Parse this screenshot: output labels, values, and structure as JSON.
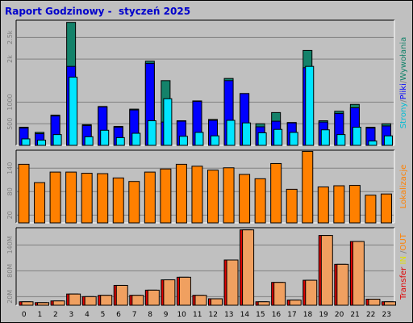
{
  "title": "Raport Godzinowy -  styczeń 2025",
  "colors": {
    "background": "#c0c0c0",
    "hits": "#14826a",
    "files": "#0000ff",
    "pages": "#00e5ff",
    "visits": "#ff8000",
    "sites": "#ffb000",
    "kbytes": "#e00000",
    "kbytes_fill": "#f0a060",
    "title": "#0000cc"
  },
  "right_labels": {
    "panel1": [
      {
        "text": "Strony",
        "color": "#00bcd4"
      },
      {
        "text": "/",
        "color": "#808080"
      },
      {
        "text": "Pliki",
        "color": "#0000ff"
      },
      {
        "text": "/",
        "color": "#808080"
      },
      {
        "text": "Wywołania",
        "color": "#14826a"
      }
    ],
    "panel2": [
      {
        "text": "Lokalizacje",
        "color": "#ff8000"
      }
    ],
    "panel3": [
      {
        "text": "Transfer",
        "color": "#e00000"
      },
      {
        "text": " IN ",
        "color": "#e0e000"
      },
      {
        "text": "/",
        "color": "#808080"
      },
      {
        "text": "OUT",
        "color": "#ff8000"
      }
    ]
  },
  "chart_data": [
    {
      "type": "bar",
      "name": "Strony/Pliki/Wywołania",
      "categories": [
        "0",
        "1",
        "2",
        "3",
        "4",
        "5",
        "6",
        "7",
        "8",
        "9",
        "10",
        "11",
        "12",
        "13",
        "14",
        "15",
        "16",
        "17",
        "18",
        "19",
        "20",
        "21",
        "22",
        "23"
      ],
      "ylim": [
        0,
        2900
      ],
      "yticks": [
        500,
        1000,
        2000,
        2500
      ],
      "ytick_labels": [
        "500",
        "1000",
        "2k",
        "2.5k"
      ],
      "series": [
        {
          "name": "Wywołania",
          "values": [
            420,
            300,
            700,
            2850,
            480,
            900,
            440,
            840,
            1950,
            1500,
            570,
            1030,
            600,
            1550,
            1200,
            500,
            760,
            530,
            2200,
            570,
            790,
            950,
            420,
            500
          ]
        },
        {
          "name": "Pliki",
          "values": [
            400,
            270,
            680,
            1830,
            460,
            890,
            420,
            820,
            1900,
            540,
            560,
            1020,
            580,
            1500,
            1200,
            430,
            560,
            520,
            1800,
            540,
            740,
            870,
            400,
            450
          ]
        },
        {
          "name": "Strony",
          "values": [
            150,
            120,
            250,
            1580,
            200,
            350,
            180,
            280,
            570,
            1080,
            210,
            300,
            220,
            580,
            520,
            290,
            370,
            300,
            1830,
            360,
            250,
            420,
            100,
            220
          ]
        }
      ]
    },
    {
      "type": "bar",
      "name": "Lokalizacje",
      "categories": [
        "0",
        "1",
        "2",
        "3",
        "4",
        "5",
        "6",
        "7",
        "8",
        "9",
        "10",
        "11",
        "12",
        "13",
        "14",
        "15",
        "16",
        "17",
        "18",
        "19",
        "20",
        "21",
        "22",
        "23"
      ],
      "ylim": [
        0,
        186
      ],
      "yticks": [
        20,
        80,
        140
      ],
      "ytick_labels": [
        "20",
        "80",
        "140"
      ],
      "series": [
        {
          "name": "Lokalizacje",
          "values": [
            150,
            103,
            130,
            130,
            127,
            126,
            115,
            106,
            130,
            138,
            150,
            145,
            135,
            141,
            124,
            113,
            152,
            86,
            183,
            92,
            95,
            96,
            71,
            74
          ]
        }
      ]
    },
    {
      "type": "bar",
      "name": "Transfer",
      "categories": [
        "0",
        "1",
        "2",
        "3",
        "4",
        "5",
        "6",
        "7",
        "8",
        "9",
        "10",
        "11",
        "12",
        "13",
        "14",
        "15",
        "16",
        "17",
        "18",
        "19",
        "20",
        "21",
        "22",
        "23"
      ],
      "ylim": [
        0,
        180
      ],
      "yticks": [
        20,
        80,
        140
      ],
      "ytick_labels": [
        "20M",
        "80M",
        "140M"
      ],
      "series": [
        {
          "name": "Transfer",
          "values": [
            8,
            6,
            10,
            26,
            20,
            23,
            46,
            23,
            35,
            59,
            65,
            23,
            15,
            105,
            175,
            8,
            53,
            12,
            58,
            162,
            95,
            148,
            14,
            8
          ]
        }
      ]
    }
  ]
}
